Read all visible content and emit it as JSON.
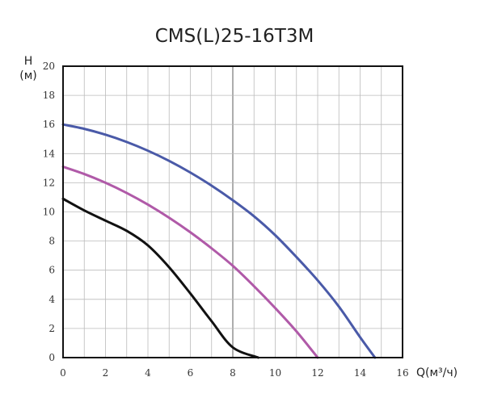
{
  "chart_data": {
    "type": "line",
    "title": "CMS(L)25-16T3M",
    "ylabel_top": "H",
    "ylabel_unit": "(м)",
    "xlabel": "Q(м³/ч)",
    "xlim": [
      0,
      16
    ],
    "ylim": [
      0,
      20
    ],
    "xticks": [
      0,
      2,
      4,
      6,
      8,
      10,
      12,
      14,
      16
    ],
    "yticks": [
      0,
      2,
      4,
      6,
      8,
      10,
      12,
      14,
      16,
      18,
      20
    ],
    "grid": true,
    "legend": false,
    "series": [
      {
        "color": "#4a5aa8",
        "x": [
          0,
          1,
          2,
          3,
          4,
          5,
          6,
          7,
          8,
          9,
          10,
          11,
          12,
          13,
          14,
          14.7
        ],
        "y": [
          16.0,
          15.7,
          15.3,
          14.8,
          14.2,
          13.5,
          12.7,
          11.8,
          10.8,
          9.7,
          8.4,
          6.9,
          5.3,
          3.5,
          1.4,
          0
        ]
      },
      {
        "color": "#b05aa8",
        "x": [
          0,
          1,
          2,
          3,
          4,
          5,
          6,
          7,
          8,
          9,
          10,
          11,
          12
        ],
        "y": [
          13.1,
          12.6,
          12.0,
          11.3,
          10.5,
          9.6,
          8.6,
          7.5,
          6.3,
          4.9,
          3.4,
          1.8,
          0
        ]
      },
      {
        "color": "#111111",
        "x": [
          0,
          1,
          2,
          3,
          4,
          5,
          6,
          7,
          8,
          9.2
        ],
        "y": [
          10.9,
          10.1,
          9.4,
          8.7,
          7.7,
          6.2,
          4.4,
          2.5,
          0.7,
          0
        ]
      }
    ]
  }
}
